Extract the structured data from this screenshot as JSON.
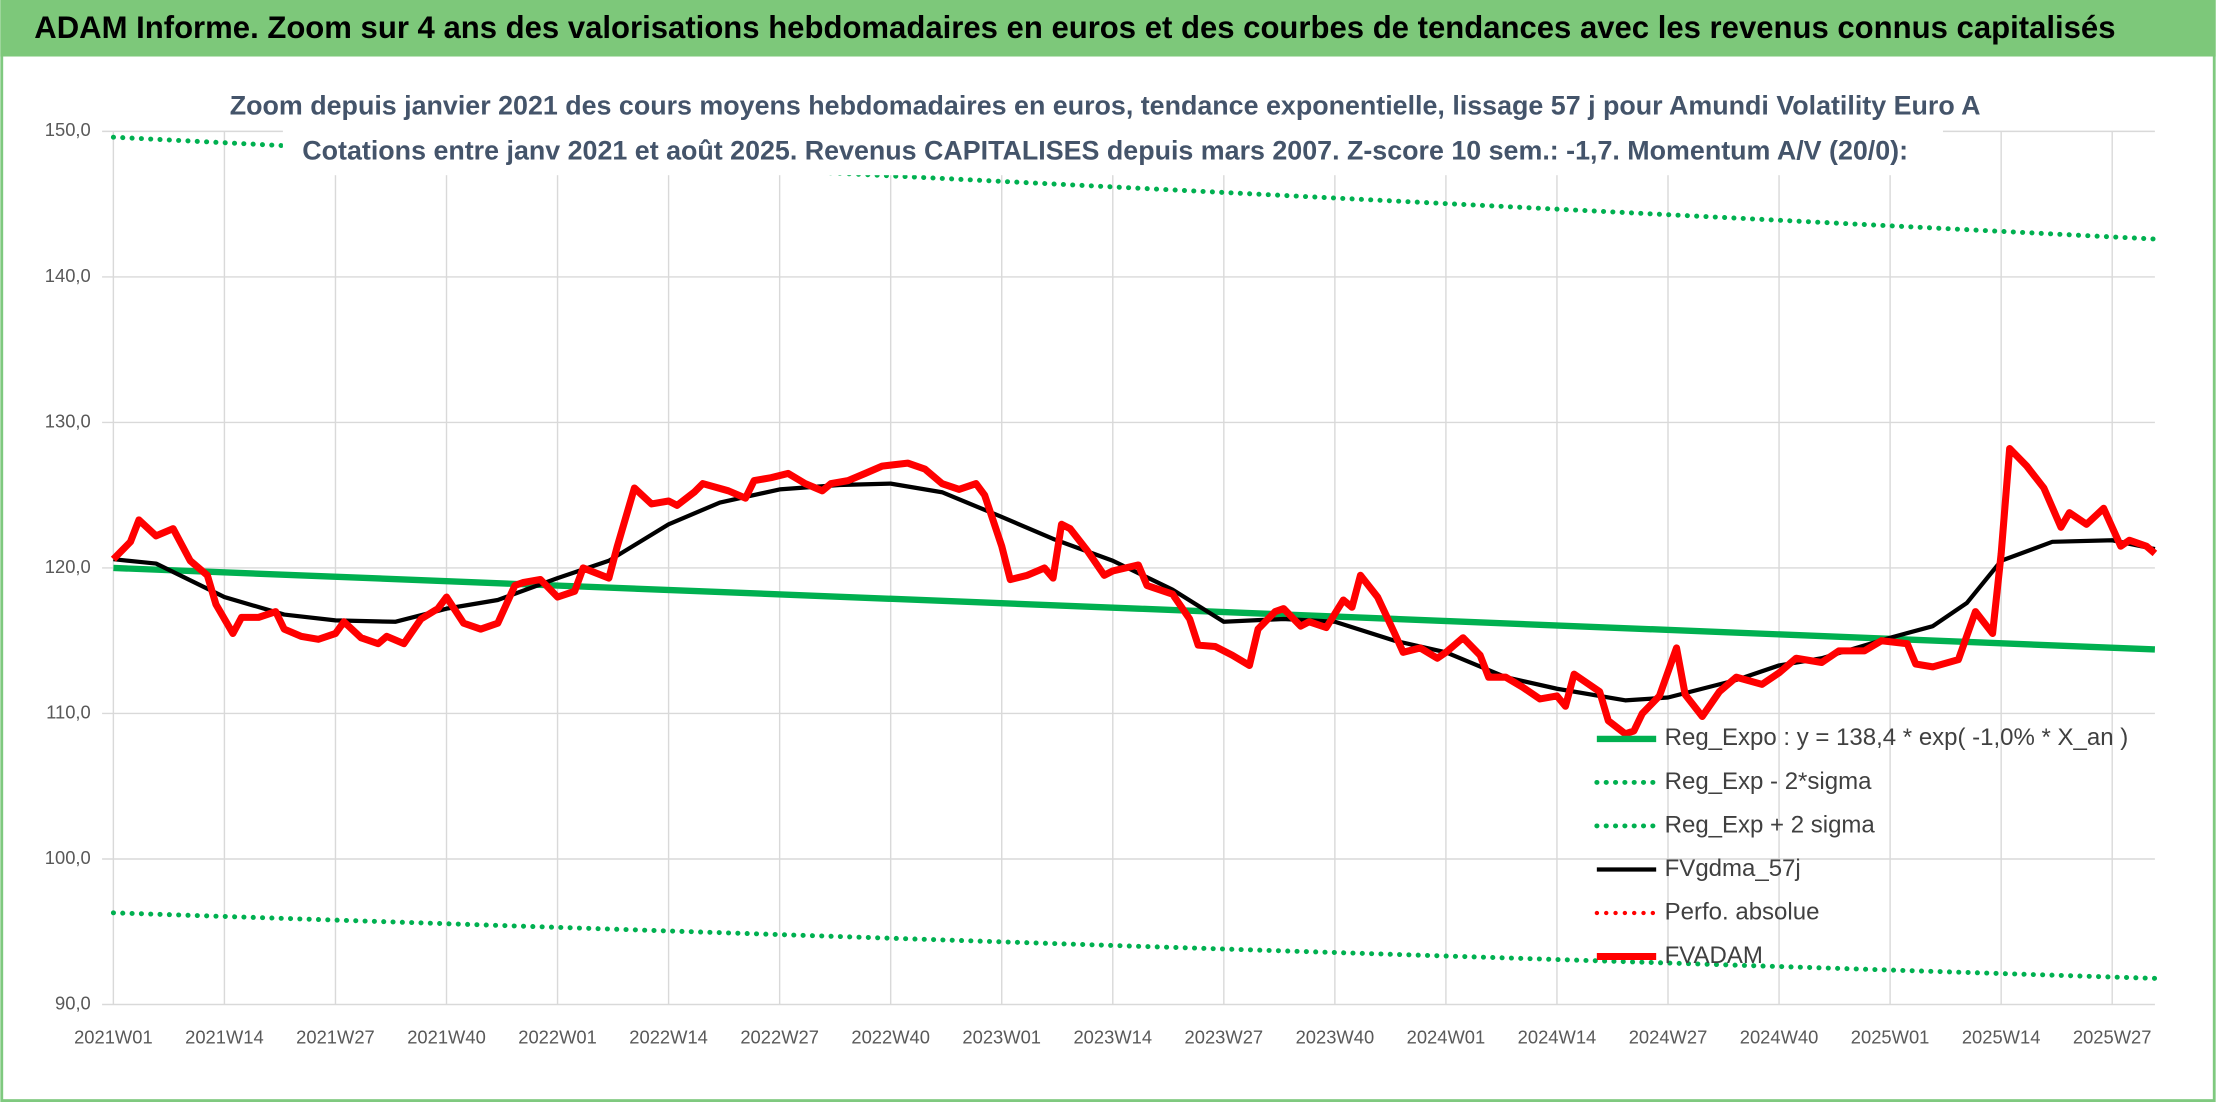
{
  "chart_data": {
    "type": "line",
    "title": "ADAM Informe. Zoom sur 4 ans des valorisations hebdomadaires en euros et des courbes de tendances avec les revenus connus capitalisés",
    "subtitle": [
      "Zoom depuis janvier 2021 des cours moyens hebdomadaires en euros, tendance exponentielle, lissage 57 j pour Amundi Volatility Euro A",
      "Cotations entre janv 2021 et août 2025. Revenus CAPITALISES depuis mars 2007. Z-score 10 sem.: -1,7. Momentum A/V (20/0):"
    ],
    "xlim": [
      0,
      239
    ],
    "xticks": [
      {
        "value": 0,
        "label": "2021W01"
      },
      {
        "value": 13,
        "label": "2021W14"
      },
      {
        "value": 26,
        "label": "2021W27"
      },
      {
        "value": 39,
        "label": "2021W40"
      },
      {
        "value": 52,
        "label": "2022W01"
      },
      {
        "value": 65,
        "label": "2022W14"
      },
      {
        "value": 78,
        "label": "2022W27"
      },
      {
        "value": 91,
        "label": "2022W40"
      },
      {
        "value": 104,
        "label": "2023W01"
      },
      {
        "value": 117,
        "label": "2023W14"
      },
      {
        "value": 130,
        "label": "2023W27"
      },
      {
        "value": 143,
        "label": "2023W40"
      },
      {
        "value": 156,
        "label": "2024W01"
      },
      {
        "value": 169,
        "label": "2024W14"
      },
      {
        "value": 182,
        "label": "2024W27"
      },
      {
        "value": 195,
        "label": "2024W40"
      },
      {
        "value": 208,
        "label": "2025W01"
      },
      {
        "value": 221,
        "label": "2025W14"
      },
      {
        "value": 234,
        "label": "2025W27"
      }
    ],
    "ylim": [
      90,
      150
    ],
    "yticks": [
      {
        "value": 90,
        "label": "90,0"
      },
      {
        "value": 100,
        "label": "100,0"
      },
      {
        "value": 110,
        "label": "110,0"
      },
      {
        "value": 120,
        "label": "120,0"
      },
      {
        "value": 130,
        "label": "130,0"
      },
      {
        "value": 140,
        "label": "140,0"
      },
      {
        "value": 150,
        "label": "150,0"
      }
    ],
    "grid": true,
    "series": [
      {
        "name": "Reg_Expo : y = 138,4 * exp( -1,0% *  X_an )",
        "color": "#00b050",
        "line_style": "solid",
        "x": [
          0,
          120,
          239
        ],
        "values": [
          120.0,
          117.2,
          114.4
        ]
      },
      {
        "name": "Reg_Exp - 2*sigma",
        "color": "#00b050",
        "line_style": "dotted",
        "x": [
          0,
          120,
          239
        ],
        "values": [
          96.3,
          94.0,
          91.8
        ]
      },
      {
        "name": "Reg_Exp + 2 sigma",
        "color": "#00b050",
        "line_style": "dotted",
        "x": [
          0,
          120,
          239
        ],
        "values": [
          149.6,
          146.1,
          142.6
        ]
      },
      {
        "name": "FVgdma_57j",
        "color": "#000000",
        "line_style": "solid",
        "x": [
          0,
          5,
          13,
          20,
          26,
          33,
          39,
          45,
          52,
          58,
          65,
          71,
          78,
          85,
          91,
          97,
          104,
          110,
          117,
          124,
          130,
          137,
          143,
          150,
          156,
          163,
          169,
          177,
          182,
          190,
          195,
          200,
          208,
          213,
          217,
          221,
          227,
          234,
          239
        ],
        "values": [
          120.6,
          120.3,
          118.0,
          116.8,
          116.4,
          116.3,
          117.2,
          117.8,
          119.3,
          120.5,
          123.0,
          124.5,
          125.4,
          125.7,
          125.8,
          125.2,
          123.5,
          122.0,
          120.5,
          118.5,
          116.3,
          116.5,
          116.3,
          115.0,
          114.2,
          112.5,
          111.7,
          110.9,
          111.1,
          112.3,
          113.3,
          113.8,
          115.2,
          116.0,
          117.6,
          120.5,
          121.8,
          121.9,
          121.3
        ]
      },
      {
        "name": "Perfo. absolue",
        "color": "#ff0000",
        "line_style": "dotted",
        "x": [],
        "values": []
      },
      {
        "name": "FVADAM",
        "color": "#ff0000",
        "line_style": "solid",
        "x": [
          0,
          2,
          3,
          5,
          7,
          9,
          11,
          12,
          14,
          15,
          17,
          19,
          20,
          22,
          24,
          26,
          27,
          29,
          31,
          32,
          34,
          36,
          38,
          39,
          41,
          43,
          45,
          47,
          48,
          50,
          52,
          54,
          55,
          58,
          59,
          61,
          63,
          65,
          66,
          68,
          69,
          72,
          74,
          75,
          77,
          79,
          81,
          83,
          84,
          86,
          88,
          90,
          93,
          95,
          97,
          99,
          101,
          102,
          104,
          105,
          107,
          109,
          110,
          111,
          112,
          114,
          116,
          117,
          120,
          121,
          124,
          126,
          127,
          129,
          131,
          133,
          134,
          136,
          137,
          139,
          140,
          142,
          144,
          145,
          146,
          148,
          150,
          151,
          153,
          155,
          156,
          158,
          160,
          161,
          163,
          165,
          167,
          169,
          170,
          171,
          174,
          175,
          177,
          178,
          179,
          181,
          183,
          184,
          186,
          188,
          190,
          193,
          195,
          197,
          200,
          202,
          205,
          207,
          210,
          211,
          213,
          216,
          218,
          220,
          221,
          222,
          224,
          226,
          228,
          229,
          231,
          233,
          235,
          236,
          238,
          239
        ],
        "values": [
          120.6,
          121.8,
          123.3,
          122.2,
          122.7,
          120.5,
          119.5,
          117.5,
          115.5,
          116.6,
          116.6,
          117.0,
          115.8,
          115.3,
          115.1,
          115.5,
          116.3,
          115.2,
          114.8,
          115.3,
          114.8,
          116.5,
          117.2,
          118.0,
          116.2,
          115.8,
          116.2,
          118.8,
          119.0,
          119.2,
          118.0,
          118.4,
          120.0,
          119.3,
          121.5,
          125.5,
          124.4,
          124.6,
          124.3,
          125.2,
          125.8,
          125.3,
          124.8,
          126.0,
          126.2,
          126.5,
          125.8,
          125.3,
          125.8,
          126.0,
          126.5,
          127.0,
          127.2,
          126.8,
          125.8,
          125.4,
          125.8,
          125.0,
          121.5,
          119.2,
          119.5,
          120.0,
          119.3,
          123.0,
          122.7,
          121.2,
          119.5,
          119.8,
          120.2,
          118.8,
          118.2,
          116.5,
          114.7,
          114.6,
          114.0,
          113.3,
          115.8,
          117.0,
          117.2,
          116.0,
          116.3,
          115.9,
          117.8,
          117.3,
          119.5,
          118.0,
          115.5,
          114.2,
          114.5,
          113.8,
          114.2,
          115.2,
          114.0,
          112.5,
          112.5,
          111.8,
          111.0,
          111.2,
          110.5,
          112.7,
          111.5,
          109.5,
          108.6,
          108.8,
          110.0,
          111.2,
          114.5,
          111.3,
          109.8,
          111.5,
          112.5,
          112.0,
          112.8,
          113.8,
          113.5,
          114.3,
          114.3,
          115.0,
          114.8,
          113.4,
          113.2,
          113.7,
          117.0,
          115.5,
          121.0,
          128.2,
          127.0,
          125.5,
          122.8,
          123.8,
          123.0,
          124.1,
          121.5,
          121.9,
          121.5,
          121.0
        ]
      }
    ]
  }
}
